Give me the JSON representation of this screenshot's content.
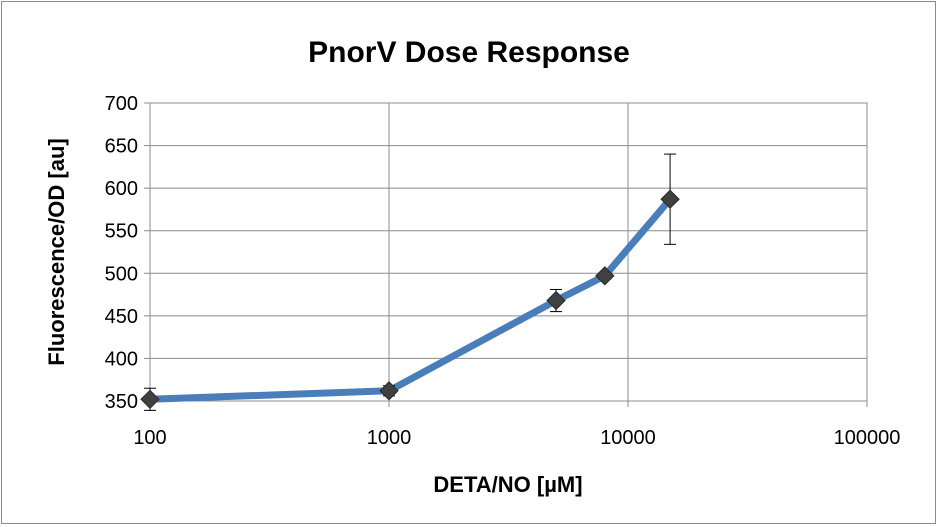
{
  "chart_data": {
    "type": "line",
    "title": "PnorV Dose Response",
    "xlabel": "DETA/NO [µM]",
    "ylabel": "Fluorescence/OD [au]",
    "x_scale": "log",
    "xlim": [
      100,
      100000
    ],
    "ylim": [
      350,
      700
    ],
    "x_ticks": [
      "100",
      "1000",
      "10000",
      "100000"
    ],
    "y_ticks": [
      "350",
      "400",
      "450",
      "500",
      "550",
      "600",
      "650",
      "700"
    ],
    "grid": true,
    "legend": "none",
    "line_color": "#4a7ebb",
    "marker_color": "#404040",
    "series": [
      {
        "x": [
          100,
          1000,
          5000,
          8000,
          15000
        ],
        "y": [
          352,
          362,
          468,
          497,
          587
        ],
        "error": [
          13,
          6,
          13,
          4,
          53
        ]
      }
    ]
  }
}
